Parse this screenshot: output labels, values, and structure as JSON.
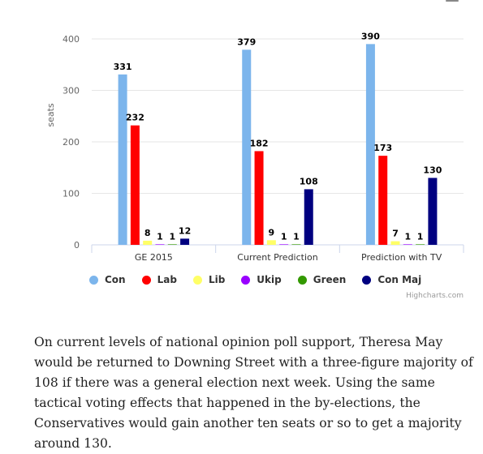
{
  "chart_data": {
    "type": "bar",
    "title": "",
    "xlabel": "",
    "ylabel": "seats",
    "ylim": [
      0,
      400
    ],
    "yticks": [
      0,
      100,
      200,
      300,
      400
    ],
    "grid": true,
    "legend_position": "bottom",
    "categories": [
      "GE 2015",
      "Current Prediction",
      "Prediction with TV"
    ],
    "series": [
      {
        "name": "Con",
        "color": "#7cb5ec",
        "values": [
          331,
          379,
          390
        ]
      },
      {
        "name": "Lab",
        "color": "#ff0000",
        "values": [
          232,
          182,
          173
        ]
      },
      {
        "name": "Lib",
        "color": "#ffff66",
        "values": [
          8,
          9,
          7
        ]
      },
      {
        "name": "Ukip",
        "color": "#9900ff",
        "values": [
          1,
          1,
          1
        ]
      },
      {
        "name": "Green",
        "color": "#339900",
        "values": [
          1,
          1,
          1
        ]
      },
      {
        "name": "Con Maj",
        "color": "#000080",
        "values": [
          12,
          108,
          130
        ]
      }
    ],
    "credits": "Highcharts.com"
  },
  "article": {
    "paragraph": "On current levels of national opinion poll support, Theresa May would be returned to Downing Street with a three-figure majority of 108 if there was a general election next week. Using the same tactical voting effects that happened in the by-elections, the Conservatives would gain another ten seats or so to get a majority around 130."
  }
}
